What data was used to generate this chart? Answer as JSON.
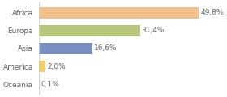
{
  "categories": [
    "Africa",
    "Europa",
    "Asia",
    "America",
    "Oceania"
  ],
  "values": [
    49.8,
    31.4,
    16.6,
    2.0,
    0.1
  ],
  "labels": [
    "49,8%",
    "31,4%",
    "16,6%",
    "2,0%",
    "0,1%"
  ],
  "bar_colors": [
    "#f2c18a",
    "#b8c87a",
    "#7a8fc2",
    "#f0d060",
    "#cccccc"
  ],
  "background_color": "#ffffff",
  "bar_height": 0.62,
  "xlim": [
    0,
    56
  ],
  "label_fontsize": 6.5,
  "tick_fontsize": 6.5,
  "text_color": "#666666"
}
